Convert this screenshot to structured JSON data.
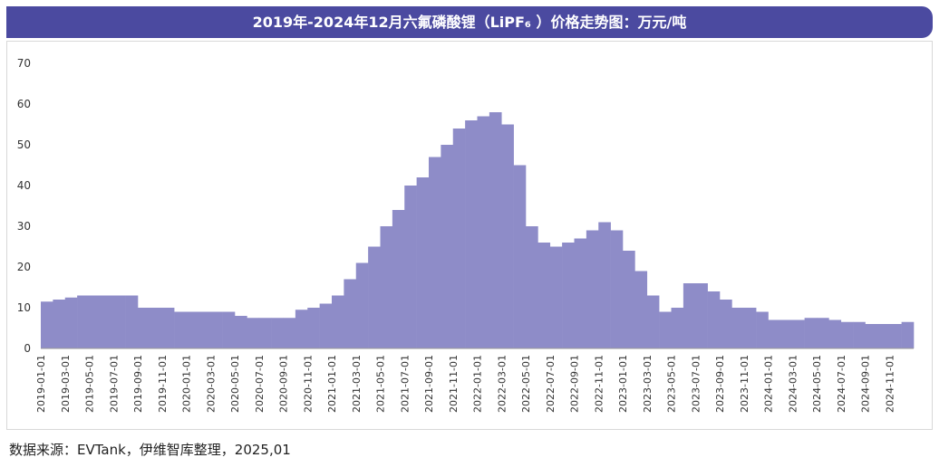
{
  "chart_data": {
    "type": "bar",
    "title": "2019年-2024年12月六氟磷酸锂（LiPF₆ ）价格走势图：万元/吨",
    "source": "数据来源：EVTank，伊维智库整理，2025,01",
    "categories": [
      "2019-01-01",
      null,
      "2019-03-01",
      null,
      "2019-05-01",
      null,
      "2019-07-01",
      null,
      "2019-09-01",
      null,
      "2019-11-01",
      null,
      "2020-01-01",
      null,
      "2020-03-01",
      null,
      "2020-05-01",
      null,
      "2020-07-01",
      null,
      "2020-09-01",
      null,
      "2020-11-01",
      null,
      "2021-01-01",
      null,
      "2021-03-01",
      null,
      "2021-05-01",
      null,
      "2021-07-01",
      null,
      "2021-09-01",
      null,
      "2021-11-01",
      null,
      "2022-01-01",
      null,
      "2022-03-01",
      null,
      "2022-05-01",
      null,
      "2022-07-01",
      null,
      "2022-09-01",
      null,
      "2022-11-01",
      null,
      "2023-01-01",
      null,
      "2023-03-01",
      null,
      "2023-05-01",
      null,
      "2023-07-01",
      null,
      "2023-09-01",
      null,
      "2023-11-01",
      null,
      "2024-01-01",
      null,
      "2024-03-01",
      null,
      "2024-05-01",
      null,
      "2024-07-01",
      null,
      "2024-09-01",
      null,
      "2024-11-01",
      null
    ],
    "values": [
      11.5,
      12,
      12.5,
      13,
      13,
      13,
      13,
      13,
      10,
      10,
      10,
      9,
      9,
      9,
      9,
      9,
      8,
      7.5,
      7.5,
      7.5,
      7.5,
      9.5,
      10,
      11,
      13,
      17,
      21,
      25,
      30,
      34,
      40,
      42,
      47,
      50,
      54,
      56,
      57,
      58,
      55,
      45,
      30,
      26,
      25,
      26,
      27,
      29,
      31,
      29,
      24,
      19,
      13,
      9,
      10,
      16,
      16,
      14,
      12,
      10,
      10,
      9,
      7,
      7,
      7,
      7.5,
      7.5,
      7,
      6.5,
      6.5,
      6,
      6,
      6,
      6.5
    ],
    "color": "#8e8cc8",
    "ylim": [
      0,
      70
    ],
    "yticks": [
      0,
      10,
      20,
      30,
      40,
      50,
      60,
      70
    ],
    "grid": false
  }
}
